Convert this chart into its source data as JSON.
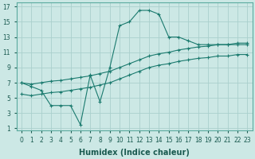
{
  "xlabel": "Humidex (Indice chaleur)",
  "ylabel": "",
  "background_color": "#cce8e5",
  "grid_color": "#aad0cd",
  "line_color": "#1a7a6e",
  "x": [
    0,
    1,
    2,
    3,
    4,
    5,
    6,
    7,
    8,
    9,
    10,
    11,
    12,
    13,
    14,
    15,
    16,
    17,
    18,
    19,
    20,
    21,
    22,
    23
  ],
  "line1": [
    7.0,
    6.5,
    6.0,
    4.0,
    4.0,
    4.0,
    1.5,
    8.0,
    4.5,
    9.0,
    14.5,
    15.0,
    16.5,
    16.5,
    16.0,
    13.0,
    13.0,
    12.5,
    12.0,
    12.0,
    12.0,
    12.0,
    12.0,
    12.0
  ],
  "line2": [
    7.0,
    6.8,
    7.0,
    7.2,
    7.3,
    7.5,
    7.7,
    7.9,
    8.2,
    8.5,
    9.0,
    9.5,
    10.0,
    10.5,
    10.8,
    11.0,
    11.3,
    11.5,
    11.7,
    11.8,
    12.0,
    12.0,
    12.2,
    12.2
  ],
  "line3": [
    5.5,
    5.3,
    5.5,
    5.7,
    5.8,
    6.0,
    6.2,
    6.4,
    6.7,
    7.0,
    7.5,
    8.0,
    8.5,
    9.0,
    9.3,
    9.5,
    9.8,
    10.0,
    10.2,
    10.3,
    10.5,
    10.5,
    10.7,
    10.7
  ],
  "ylim_min": 1,
  "ylim_max": 17,
  "xlim_min": 0,
  "xlim_max": 23,
  "yticks": [
    1,
    3,
    5,
    7,
    9,
    11,
    13,
    15,
    17
  ],
  "xticks": [
    0,
    1,
    2,
    3,
    4,
    5,
    6,
    7,
    8,
    9,
    10,
    11,
    12,
    13,
    14,
    15,
    16,
    17,
    18,
    19,
    20,
    21,
    22,
    23
  ],
  "tick_fontsize": 5.5,
  "label_fontsize": 7
}
